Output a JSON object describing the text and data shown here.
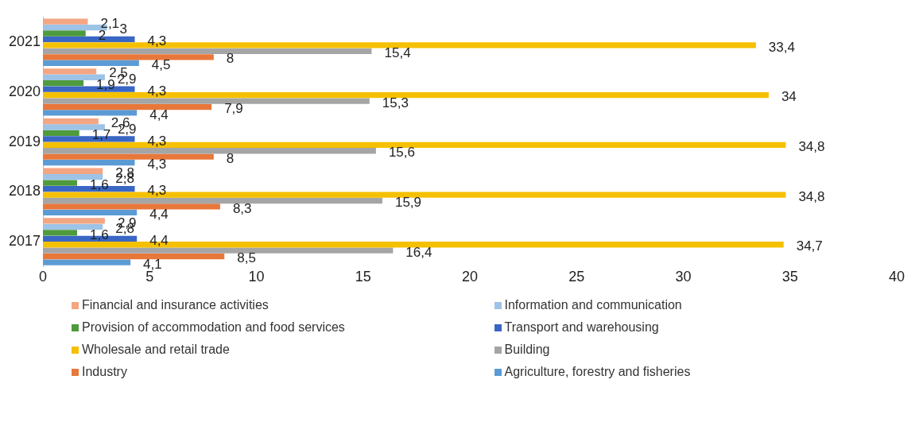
{
  "chart_data": {
    "type": "bar",
    "orientation": "horizontal",
    "categories": [
      "2021",
      "2020",
      "2019",
      "2018",
      "2017"
    ],
    "xlim": [
      0,
      40
    ],
    "xticks": [
      0,
      5,
      10,
      15,
      20,
      25,
      30,
      35,
      40
    ],
    "grid": false,
    "legend": "bottom",
    "series": [
      {
        "name": "Financial and insurance activities",
        "color": "#f4a582",
        "values": [
          2.1,
          2.5,
          2.6,
          2.8,
          2.9
        ],
        "value_labels": [
          "2,1",
          "2,5",
          "2,6",
          "2,8",
          "2,9"
        ]
      },
      {
        "name": "Information and communication",
        "color": "#9dc3e6",
        "values": [
          3,
          2.9,
          2.9,
          2.8,
          2.8
        ],
        "value_labels": [
          "3",
          "2,9",
          "2,9",
          "2,8",
          "2,8"
        ]
      },
      {
        "name": "Provision of accommodation and food services",
        "color": "#4e9a3e",
        "values": [
          2,
          1.9,
          1.7,
          1.6,
          1.6
        ],
        "value_labels": [
          "2",
          "1,9",
          "1,7",
          "1,6",
          "1,6"
        ]
      },
      {
        "name": "Transport and warehousing",
        "color": "#3a66c4",
        "values": [
          4.3,
          4.3,
          4.3,
          4.3,
          4.4
        ],
        "value_labels": [
          "4,3",
          "4,3",
          "4,3",
          "4,3",
          "4,4"
        ]
      },
      {
        "name": "Wholesale and retail trade",
        "color": "#f5c000",
        "values": [
          33.4,
          34,
          34.8,
          34.8,
          34.7
        ],
        "value_labels": [
          "33,4",
          "34",
          "34,8",
          "34,8",
          "34,7"
        ]
      },
      {
        "name": "Building",
        "color": "#a5a5a5",
        "values": [
          15.4,
          15.3,
          15.6,
          15.9,
          16.4
        ],
        "value_labels": [
          "15,4",
          "15,3",
          "15,6",
          "15,9",
          "16,4"
        ]
      },
      {
        "name": "Industry",
        "color": "#e8773a",
        "values": [
          8,
          7.9,
          8,
          8.3,
          8.5
        ],
        "value_labels": [
          "8",
          "7,9",
          "8",
          "8,3",
          "8,5"
        ]
      },
      {
        "name": "Agriculture, forestry and fisheries",
        "color": "#5b9bd5",
        "values": [
          4.5,
          4.4,
          4.3,
          4.4,
          4.1
        ],
        "value_labels": [
          "4,5",
          "4,4",
          "4,3",
          "4,4",
          "4,1"
        ]
      }
    ]
  }
}
